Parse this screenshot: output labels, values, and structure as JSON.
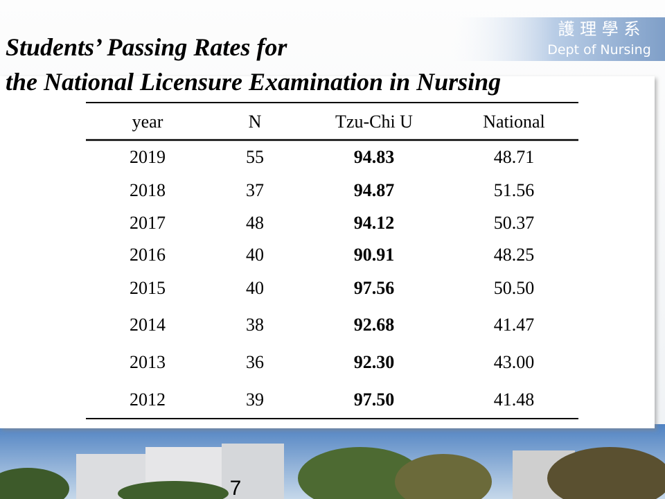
{
  "header": {
    "title_lines": [
      "Students’ Passing Rates for",
      "the National Licensure Examination in Nursing"
    ],
    "logo": {
      "chinese": "護 理 學 系",
      "english": "Dept of Nursing"
    }
  },
  "table": {
    "columns": [
      "year",
      "N",
      "Tzu-Chi U",
      "National"
    ],
    "rows": [
      [
        "2019",
        "55",
        "94.83",
        "48.71"
      ],
      [
        "2018",
        "37",
        "94.87",
        "51.56"
      ],
      [
        "2017",
        "48",
        "94.12",
        "50.37"
      ],
      [
        "2016",
        "40",
        "90.91",
        "48.25"
      ],
      [
        "2015",
        "40",
        "97.56",
        "50.50"
      ],
      [
        "2014",
        "38",
        "92.68",
        "41.47"
      ],
      [
        "2013",
        "36",
        "92.30",
        "43.00"
      ],
      [
        "2012",
        "39",
        "97.50",
        "41.48"
      ]
    ]
  },
  "footer": {
    "page_number": "7"
  }
}
